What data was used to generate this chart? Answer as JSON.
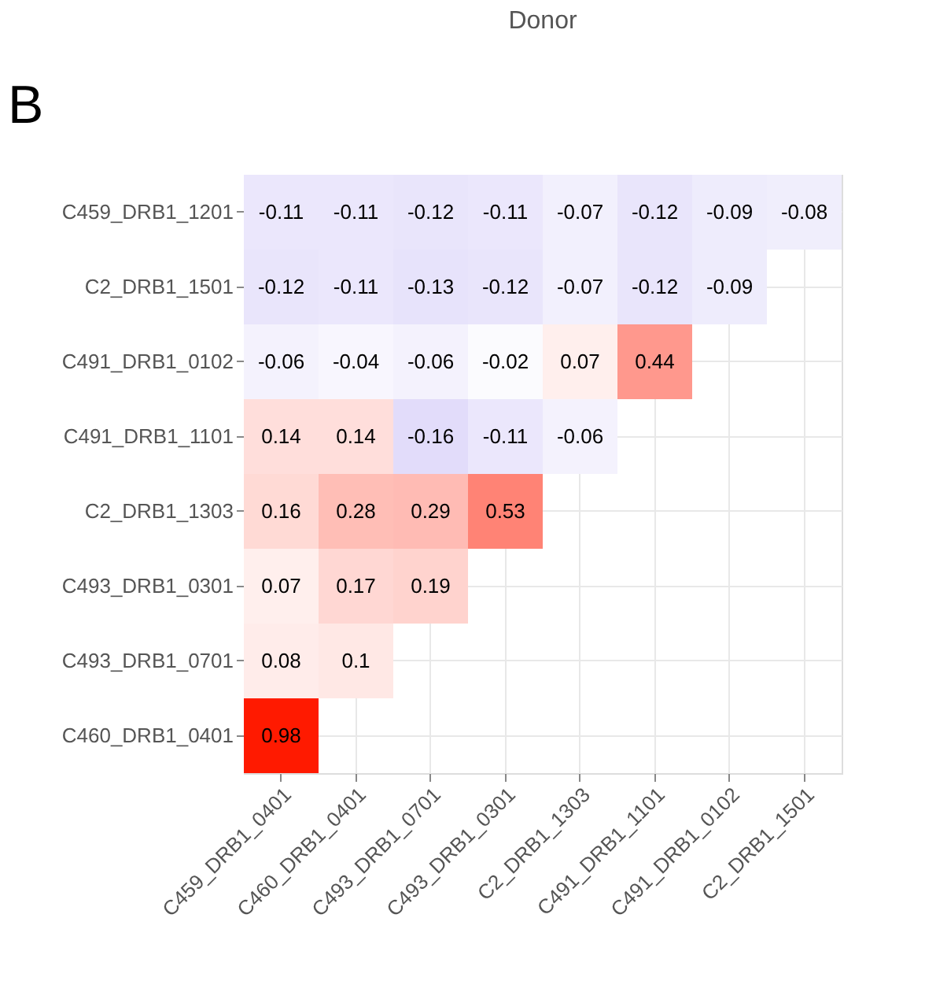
{
  "chart_data": {
    "type": "heatmap",
    "title": "Donor",
    "annotations": [
      "B"
    ],
    "categories": [
      "C459_DRB1_0401",
      "C460_DRB1_0401",
      "C493_DRB1_0701",
      "C493_DRB1_0301",
      "C2_DRB1_1303",
      "C491_DRB1_1101",
      "C491_DRB1_0102",
      "C2_DRB1_1501"
    ],
    "y_categories": [
      "C459_DRB1_1201",
      "C2_DRB1_1501",
      "C491_DRB1_0102",
      "C491_DRB1_1101",
      "C2_DRB1_1303",
      "C493_DRB1_0301",
      "C493_DRB1_0701",
      "C460_DRB1_0401"
    ],
    "cells": [
      [
        -0.11,
        -0.11,
        -0.12,
        -0.11,
        -0.07,
        -0.12,
        -0.09,
        -0.08
      ],
      [
        -0.12,
        -0.11,
        -0.13,
        -0.12,
        -0.07,
        -0.12,
        -0.09,
        null
      ],
      [
        -0.06,
        -0.04,
        -0.06,
        -0.02,
        0.07,
        0.44,
        null,
        null
      ],
      [
        0.14,
        0.14,
        -0.16,
        -0.11,
        -0.06,
        null,
        null,
        null
      ],
      [
        0.16,
        0.28,
        0.29,
        0.53,
        null,
        null,
        null,
        null
      ],
      [
        0.07,
        0.17,
        0.19,
        null,
        null,
        null,
        null,
        null
      ],
      [
        0.08,
        0.1,
        null,
        null,
        null,
        null,
        null,
        null
      ],
      [
        0.98,
        null,
        null,
        null,
        null,
        null,
        null,
        null
      ]
    ],
    "data_labels": true,
    "grid": true
  }
}
